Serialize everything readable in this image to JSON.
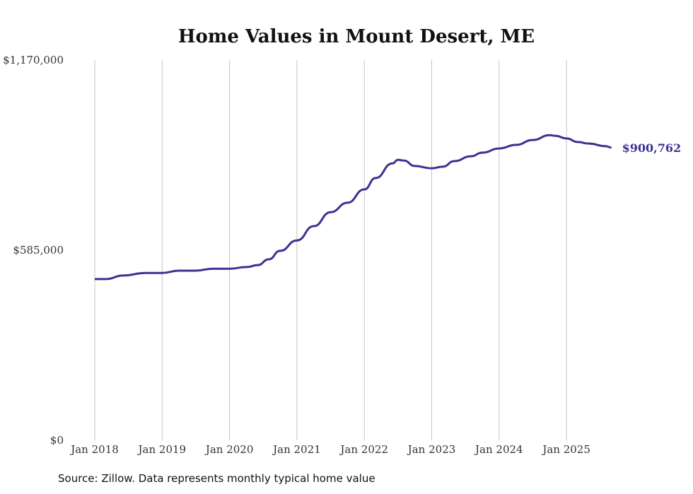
{
  "chart_data": {
    "type": "line",
    "title": "Home Values in Mount Desert, ME",
    "xlabel": "",
    "ylabel": "",
    "ylim": [
      0,
      1170000
    ],
    "y_ticks": [
      {
        "value": 0,
        "label": "$0"
      },
      {
        "value": 585000,
        "label": "$585,000"
      },
      {
        "value": 1170000,
        "label": "$1,170,000"
      }
    ],
    "x_ticks": [
      {
        "value": "2018-01",
        "label": "Jan 2018"
      },
      {
        "value": "2019-01",
        "label": "Jan 2019"
      },
      {
        "value": "2020-01",
        "label": "Jan 2020"
      },
      {
        "value": "2021-01",
        "label": "Jan 2021"
      },
      {
        "value": "2022-01",
        "label": "Jan 2022"
      },
      {
        "value": "2023-01",
        "label": "Jan 2023"
      },
      {
        "value": "2024-01",
        "label": "Jan 2024"
      },
      {
        "value": "2025-01",
        "label": "Jan 2025"
      }
    ],
    "grid": "vertical",
    "series": [
      {
        "name": "Typical home value",
        "color": "#3b3392",
        "end_label": "$900,762",
        "x": [
          "2018-01",
          "2018-03",
          "2018-06",
          "2018-10",
          "2019-01",
          "2019-04",
          "2019-07",
          "2019-10",
          "2020-01",
          "2020-04",
          "2020-06",
          "2020-08",
          "2020-10",
          "2021-01",
          "2021-04",
          "2021-07",
          "2021-10",
          "2022-01",
          "2022-03",
          "2022-06",
          "2022-07",
          "2022-08",
          "2022-10",
          "2023-01",
          "2023-03",
          "2023-05",
          "2023-08",
          "2023-10",
          "2024-01",
          "2024-04",
          "2024-07",
          "2024-10",
          "2024-11",
          "2025-01",
          "2025-03",
          "2025-05",
          "2025-08",
          "2025-09"
        ],
        "values": [
          496000,
          496000,
          507000,
          515000,
          515000,
          522000,
          522000,
          528000,
          528000,
          533000,
          539000,
          557000,
          583000,
          615000,
          659000,
          702000,
          731000,
          772000,
          807000,
          852000,
          863000,
          861000,
          844000,
          837000,
          842000,
          859000,
          874000,
          885000,
          898000,
          909000,
          924000,
          939000,
          937000,
          929000,
          918000,
          913000,
          905000,
          900762
        ]
      }
    ]
  },
  "source": "Source: Zillow. Data represents monthly typical home value"
}
